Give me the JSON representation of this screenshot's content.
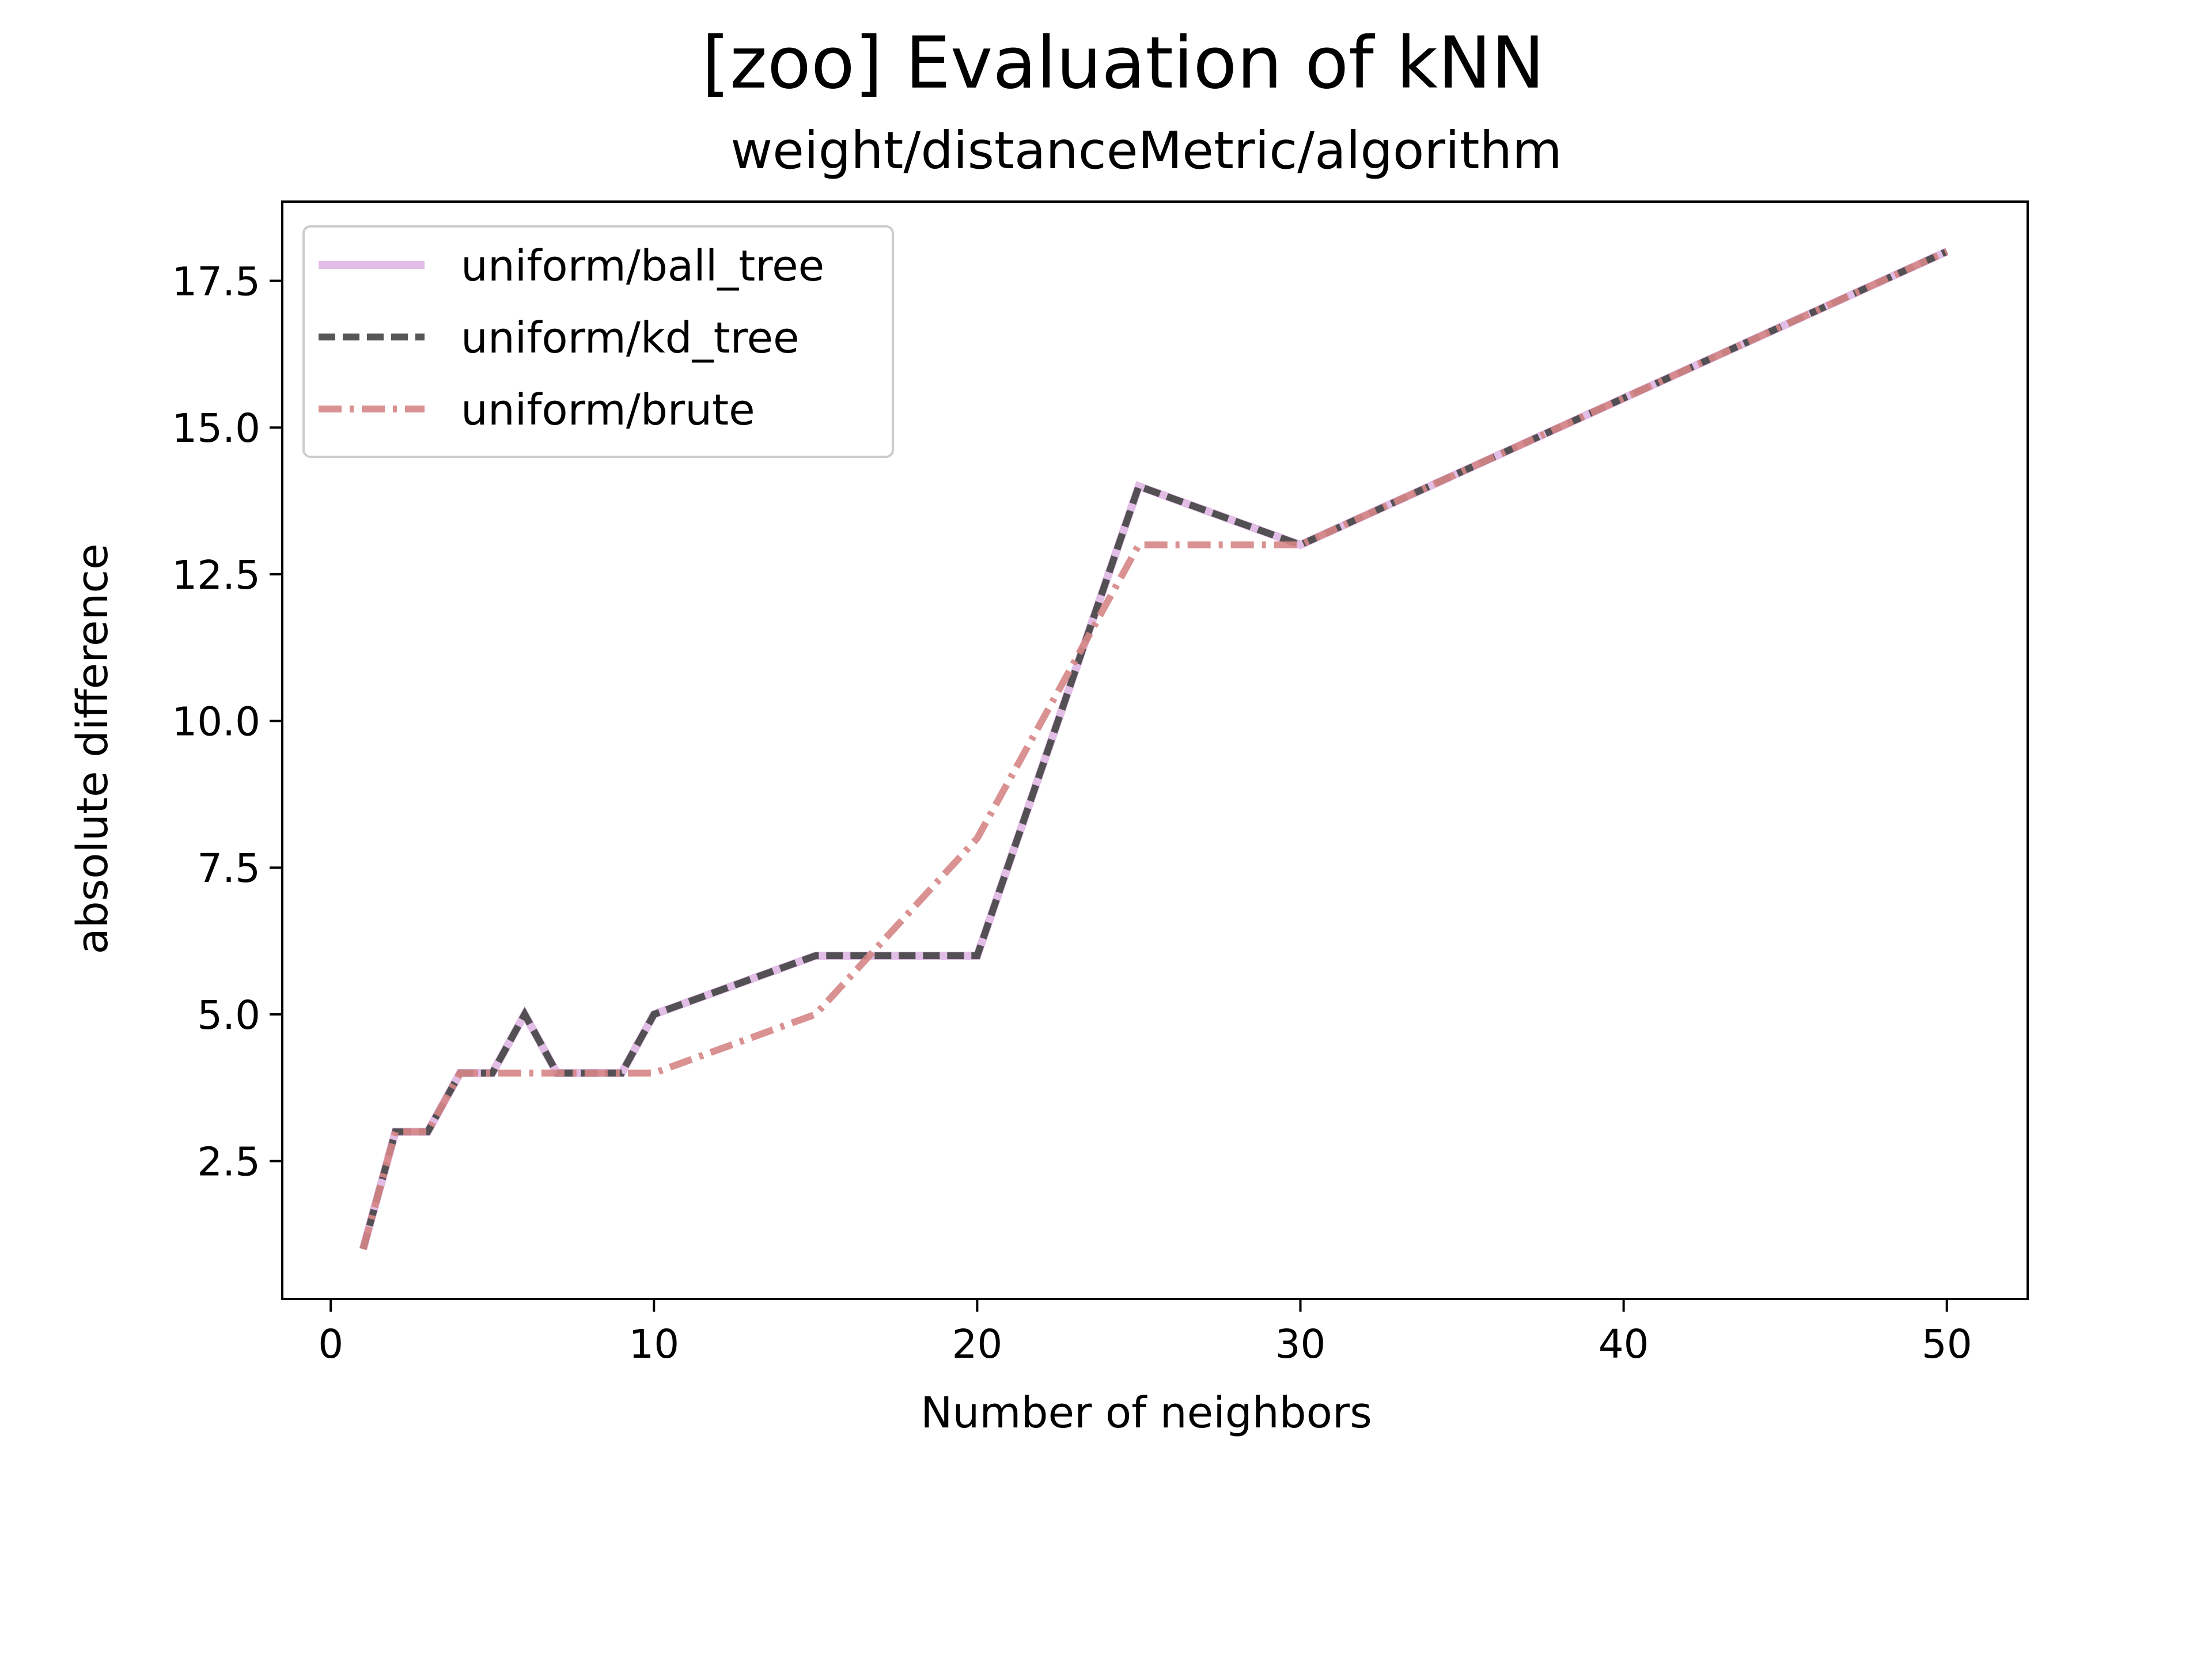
{
  "chart_data": {
    "type": "line",
    "title": "[zoo] Evaluation of kNN",
    "subtitle": "weight/distanceMetric/algorithm",
    "xlabel": "Number of neighbors",
    "ylabel": "absolute difference",
    "xlim": [
      -1.5,
      52.5
    ],
    "ylim": [
      0.15,
      18.85
    ],
    "xticks": [
      0,
      10,
      20,
      30,
      40,
      50
    ],
    "yticks": [
      2.5,
      5.0,
      7.5,
      10.0,
      12.5,
      15.0,
      17.5
    ],
    "xtick_labels": [
      "0",
      "10",
      "20",
      "30",
      "40",
      "50"
    ],
    "ytick_labels": [
      "2.5",
      "5.0",
      "7.5",
      "10.0",
      "12.5",
      "15.0",
      "17.5"
    ],
    "grid": false,
    "legend_position": "top-left",
    "series": [
      {
        "name": "uniform/ball_tree",
        "color": "#e2bde6",
        "style": "solid",
        "x": [
          1,
          2,
          3,
          4,
          5,
          6,
          7,
          8,
          9,
          10,
          15,
          20,
          25,
          30,
          50
        ],
        "y": [
          1,
          3,
          3,
          4,
          4,
          5,
          4,
          4,
          4,
          5,
          6,
          6,
          14,
          13,
          18
        ]
      },
      {
        "name": "uniform/kd_tree",
        "color": "#444444",
        "style": "dashed",
        "x": [
          1,
          2,
          3,
          4,
          5,
          6,
          7,
          8,
          9,
          10,
          15,
          20,
          25,
          30,
          50
        ],
        "y": [
          1,
          3,
          3,
          4,
          4,
          5,
          4,
          4,
          4,
          5,
          6,
          6,
          14,
          13,
          18
        ]
      },
      {
        "name": "uniform/brute",
        "color": "#d68585",
        "style": "dashdot",
        "x": [
          1,
          2,
          3,
          4,
          5,
          6,
          7,
          8,
          9,
          10,
          15,
          20,
          25,
          30,
          50
        ],
        "y": [
          1,
          3,
          3,
          4,
          4,
          4,
          4,
          4,
          4,
          4,
          5,
          8,
          13,
          13,
          18
        ]
      }
    ]
  }
}
